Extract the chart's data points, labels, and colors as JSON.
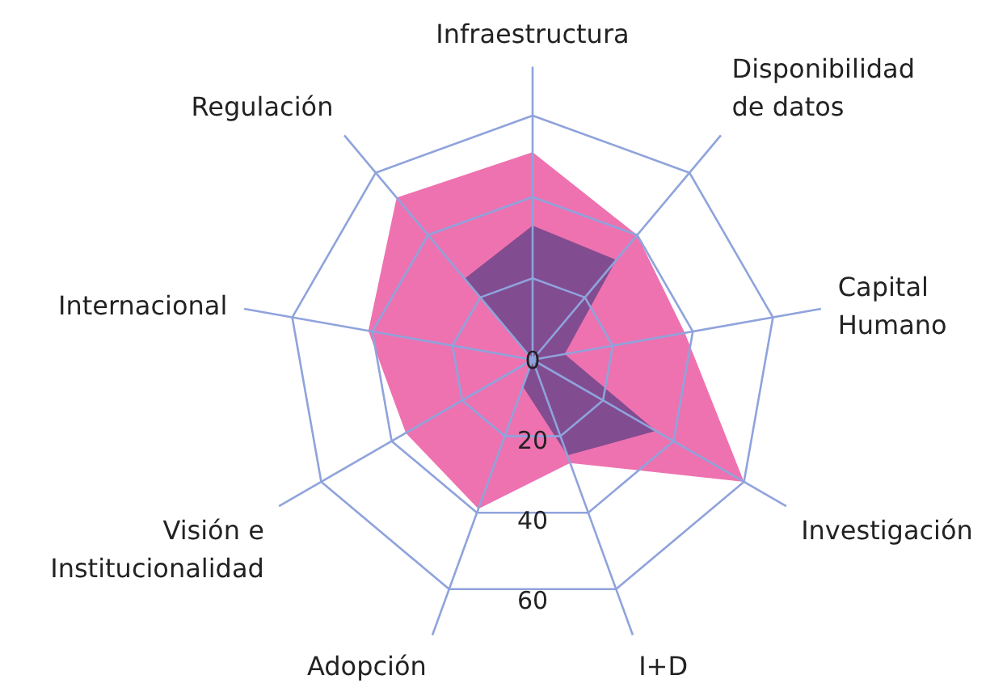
{
  "chart_data": {
    "type": "radar",
    "categories": [
      "Infraestructura",
      "Disponibilidad\nde datos",
      "Capital\nHumano",
      "Investigación",
      "I+D",
      "Adopción",
      "Visión e\nInstitucionalidad",
      "Internacional",
      "Regulación"
    ],
    "series": [
      {
        "color": "#ee72b0",
        "values": [
          51,
          40,
          38,
          60,
          27,
          39,
          36,
          41,
          52
        ]
      },
      {
        "color": "#824c90",
        "values": [
          33,
          32,
          8,
          35,
          25,
          7,
          0,
          0,
          26
        ]
      }
    ],
    "ylim": [
      0,
      60
    ],
    "yticks": [
      0,
      20,
      40,
      60
    ],
    "grid": true
  }
}
